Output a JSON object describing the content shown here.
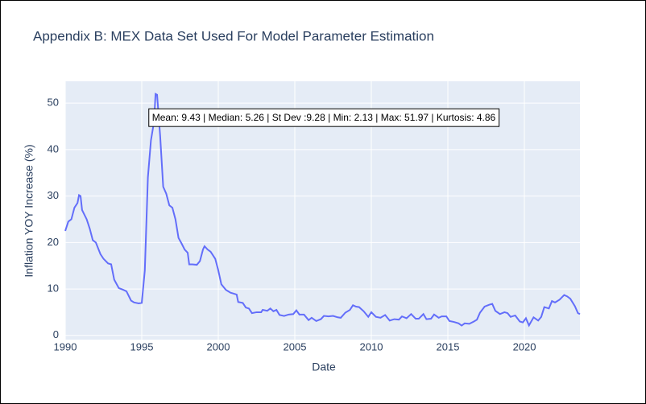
{
  "chart_data": {
    "type": "line",
    "title": "Appendix B: MEX Data Set Used For Model Parameter Estimation",
    "x_label": "Date",
    "y_label": "Inflation YOY Increase (%)",
    "annotation": "Mean: 9.43 | Median: 5.26 | St Dev :9.28 | Min: 2.13 | Max: 51.97 | Kurtosis: 4.86",
    "xlim": [
      1990,
      2023.63
    ],
    "xticks": [
      1990,
      1995,
      2000,
      2005,
      2010,
      2015,
      2020
    ],
    "ylim": [
      -0.9,
      54.7
    ],
    "yticks": [
      0,
      10,
      20,
      30,
      40,
      50
    ],
    "grid": true,
    "series": [
      {
        "color": "#636efa",
        "x": [
          1990.0,
          1990.2,
          1990.4,
          1990.6,
          1990.8,
          1990.9,
          1991.0,
          1991.1,
          1991.4,
          1991.6,
          1991.8,
          1992.0,
          1992.3,
          1992.5,
          1992.8,
          1993.0,
          1993.2,
          1993.5,
          1993.8,
          1994.0,
          1994.3,
          1994.5,
          1994.8,
          1995.0,
          1995.2,
          1995.4,
          1995.6,
          1995.8,
          1995.9,
          1996.0,
          1996.2,
          1996.4,
          1996.6,
          1996.8,
          1997.0,
          1997.2,
          1997.4,
          1997.6,
          1997.8,
          1998.0,
          1998.1,
          1998.3,
          1998.6,
          1998.8,
          1999.0,
          1999.1,
          1999.3,
          1999.5,
          1999.8,
          2000.0,
          2000.2,
          2000.5,
          2000.8,
          2001.0,
          2001.2,
          2001.3,
          2001.6,
          2001.8,
          2002.0,
          2002.2,
          2002.5,
          2002.8,
          2002.9,
          2003.2,
          2003.4,
          2003.6,
          2003.8,
          2004.0,
          2004.3,
          2004.6,
          2004.9,
          2005.1,
          2005.3,
          2005.6,
          2005.9,
          2006.1,
          2006.4,
          2006.7,
          2006.9,
          2007.2,
          2007.5,
          2007.8,
          2008.0,
          2008.3,
          2008.6,
          2008.8,
          2009.0,
          2009.2,
          2009.5,
          2009.8,
          2010.0,
          2010.3,
          2010.6,
          2010.9,
          2011.2,
          2011.5,
          2011.8,
          2012.0,
          2012.3,
          2012.6,
          2012.9,
          2013.1,
          2013.4,
          2013.6,
          2013.9,
          2014.1,
          2014.4,
          2014.6,
          2014.9,
          2015.1,
          2015.4,
          2015.7,
          2015.9,
          2016.1,
          2016.4,
          2016.7,
          2016.9,
          2017.1,
          2017.4,
          2017.7,
          2017.9,
          2018.1,
          2018.4,
          2018.7,
          2018.9,
          2019.1,
          2019.4,
          2019.7,
          2019.9,
          2020.1,
          2020.3,
          2020.6,
          2020.9,
          2021.1,
          2021.3,
          2021.6,
          2021.8,
          2022.0,
          2022.3,
          2022.6,
          2022.8,
          2023.0,
          2023.3,
          2023.5,
          2023.63
        ],
        "values": [
          22.5,
          24.5,
          25,
          27.5,
          28.5,
          30.2,
          30,
          27,
          25,
          23,
          20.5,
          20,
          17.5,
          16.5,
          15.5,
          15.3,
          12,
          10.2,
          9.8,
          9.5,
          7.5,
          7.1,
          6.9,
          7,
          14,
          34,
          42,
          46,
          51.97,
          51.8,
          43,
          32,
          30.5,
          28,
          27.5,
          25,
          21,
          19.8,
          18.5,
          17.8,
          15.3,
          15.3,
          15.2,
          16,
          18.5,
          19.2,
          18.5,
          18,
          16.5,
          14,
          11,
          9.8,
          9.2,
          9,
          8.8,
          7.2,
          7,
          6,
          5.8,
          4.8,
          5,
          5,
          5.5,
          5.3,
          5.8,
          5.2,
          5.5,
          4.4,
          4.2,
          4.5,
          4.6,
          5.4,
          4.5,
          4.5,
          3.3,
          3.8,
          3.1,
          3.5,
          4.2,
          4.1,
          4.2,
          3.9,
          3.8,
          4.9,
          5.5,
          6.5,
          6.2,
          6.1,
          5.2,
          4,
          5,
          4,
          3.8,
          4.4,
          3.2,
          3.5,
          3.4,
          4.1,
          3.7,
          4.6,
          3.6,
          3.6,
          4.6,
          3.5,
          3.6,
          4.5,
          3.8,
          4.1,
          4.1,
          3.1,
          2.9,
          2.6,
          2.13,
          2.6,
          2.5,
          3,
          3.4,
          4.9,
          6.2,
          6.6,
          6.8,
          5.3,
          4.6,
          5,
          4.8,
          4,
          4.3,
          3,
          2.8,
          3.7,
          2.15,
          3.9,
          3.2,
          4,
          6.1,
          5.8,
          7.4,
          7.1,
          7.7,
          8.7,
          8.4,
          7.9,
          6.3,
          4.8,
          4.6
        ]
      }
    ]
  }
}
